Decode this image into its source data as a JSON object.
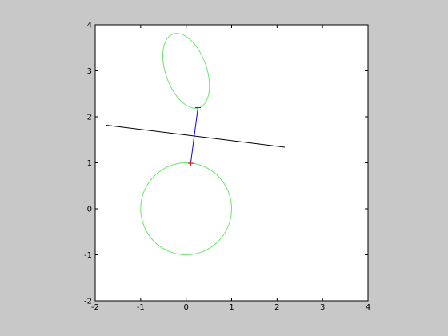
{
  "figure": {
    "background": "#c8c8c8"
  },
  "chart_data": {
    "type": "line",
    "title": "",
    "xlabel": "",
    "ylabel": "",
    "xlim": [
      -2,
      4
    ],
    "ylim": [
      -2,
      4
    ],
    "xticks": [
      -2,
      -1,
      0,
      1,
      2,
      3,
      4
    ],
    "yticks": [
      -2,
      -1,
      0,
      1,
      2,
      3,
      4
    ],
    "xtick_labels": [
      "-2",
      "-1",
      "0",
      "1",
      "2",
      "3",
      "4"
    ],
    "ytick_labels": [
      "-2",
      "-1",
      "0",
      "1",
      "2",
      "3",
      "4"
    ],
    "grid": false,
    "axes_background": "#ffffff",
    "series": [
      {
        "kind": "circle",
        "center": [
          0,
          0
        ],
        "radius": 1,
        "color": "#66e866"
      },
      {
        "kind": "ellipse",
        "center": [
          0.0,
          3.0
        ],
        "semi_major": 0.85,
        "semi_minor": 0.45,
        "major_axis_angle_deg": 110,
        "color": "#66e866"
      },
      {
        "kind": "segment",
        "x": [
          -1.77,
          2.17
        ],
        "y": [
          1.82,
          1.34
        ],
        "color": "#000000"
      },
      {
        "kind": "segment",
        "x": [
          0.1,
          0.26
        ],
        "y": [
          0.99,
          2.2
        ],
        "color": "#0000ff"
      }
    ],
    "markers": [
      {
        "x": 0.1,
        "y": 0.99,
        "symbol": "+",
        "color": "#cc0000"
      },
      {
        "x": 0.26,
        "y": 2.2,
        "symbol": "+",
        "color": "#cc0000"
      }
    ]
  }
}
